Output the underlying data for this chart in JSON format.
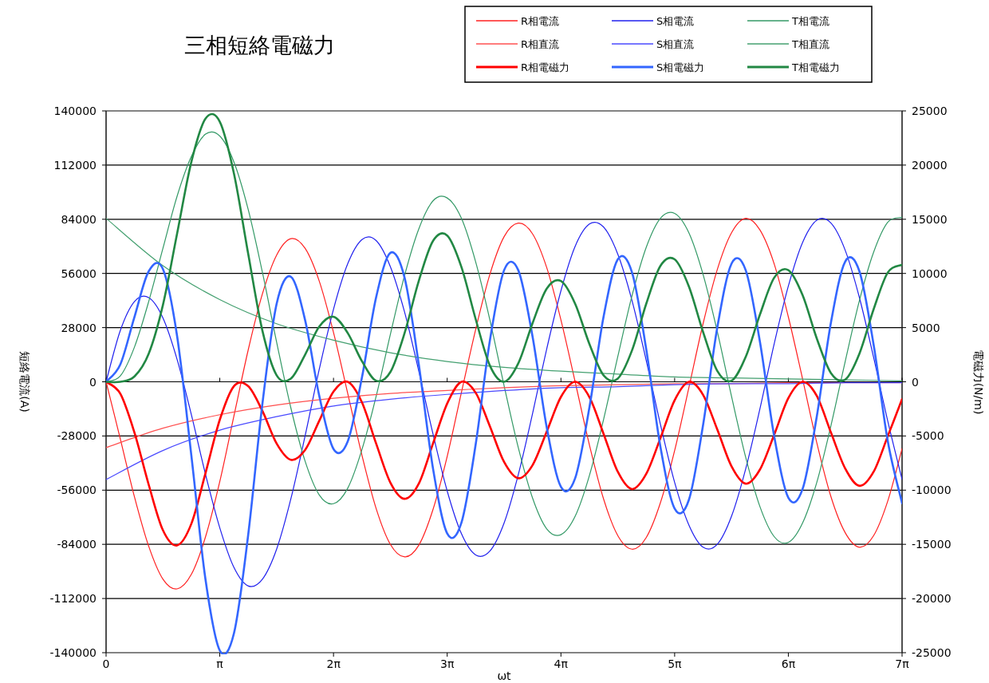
{
  "chart_data": {
    "type": "line",
    "title": "三相短絡電磁力",
    "xlabel": "ωt",
    "ylabel": "短絡電流(A)",
    "y2label": "電磁力(N/m)",
    "x": [
      0,
      0.393,
      0.785,
      1.178,
      1.571,
      1.963,
      2.356,
      2.749,
      3.142,
      3.534,
      3.927,
      4.32,
      4.712,
      5.105,
      5.498,
      5.89,
      6.283,
      6.676,
      7.069,
      7.461,
      7.854,
      8.247,
      8.639,
      9.032,
      9.425,
      9.817,
      10.21,
      10.603,
      10.996,
      11.388,
      11.781,
      12.174,
      12.566,
      12.959,
      13.352,
      13.744,
      14.137,
      14.53,
      14.923,
      15.315,
      15.708,
      16.101,
      16.493,
      16.886,
      17.279,
      17.671,
      18.064,
      18.457,
      18.85,
      19.242,
      19.635,
      20.028,
      20.42,
      20.813,
      21.206,
      21.598,
      21.991
    ],
    "xlim": [
      0,
      21.991
    ],
    "xticks": [
      0,
      {
        "value": 3.1416,
        "label": "π"
      },
      {
        "value": 6.2832,
        "label": "2π"
      },
      {
        "value": 9.4248,
        "label": "3π"
      },
      {
        "value": 12.5664,
        "label": "4π"
      },
      {
        "value": 15.708,
        "label": "5π"
      },
      {
        "value": 18.8496,
        "label": "6π"
      },
      {
        "value": 21.991,
        "label": "7π"
      }
    ],
    "ylim": [
      -140000,
      140000
    ],
    "yticks": [
      -140000,
      -112000,
      -84000,
      -56000,
      -28000,
      0,
      28000,
      56000,
      84000,
      112000,
      140000
    ],
    "y2lim": [
      -25000,
      25000
    ],
    "y2ticks": [
      -25000,
      -20000,
      -15000,
      -10000,
      -5000,
      0,
      5000,
      10000,
      15000,
      20000,
      25000
    ],
    "grid": "y",
    "legend": "top right",
    "series": [
      {
        "name": "R相電流",
        "color": "#ff2020",
        "values": [
          0,
          -29500,
          -59500,
          -85000,
          -102000,
          -107000,
          -99500,
          -80000,
          -51500,
          -17500,
          16500,
          45500,
          65500,
          74000,
          69000,
          52000,
          25500,
          -6000,
          -38000,
          -65500,
          -84000,
          -90500,
          -84500,
          -66000,
          -38500,
          -5500,
          27000,
          55500,
          75000,
          82000,
          76500,
          59000,
          32000,
          0,
          -32500,
          -60500,
          -79500,
          -86500,
          -80500,
          -62500,
          -35500,
          -3000,
          30000,
          58000,
          77000,
          84500,
          78500,
          61000,
          33500,
          1500,
          -31500,
          -59500,
          -78000,
          -85500,
          -79500,
          -61500,
          -34500
        ]
      },
      {
        "name": "S相電流",
        "color": "#2020ee",
        "values": [
          0,
          26500,
          41500,
          43500,
          33000,
          11500,
          -17000,
          -48000,
          -75500,
          -96000,
          -105500,
          -102000,
          -86500,
          -60500,
          -28000,
          6500,
          37500,
          61000,
          73500,
          73000,
          59500,
          36000,
          5500,
          -27000,
          -56500,
          -78500,
          -89500,
          -87500,
          -73000,
          -48000,
          -16500,
          17000,
          47000,
          70000,
          81500,
          80000,
          66000,
          42000,
          11000,
          -22000,
          -52000,
          -74000,
          -85500,
          -84000,
          -69500,
          -45000,
          -14000,
          19500,
          49500,
          72000,
          83500,
          82000,
          68000,
          43500,
          12500,
          -20500,
          -50500
        ]
      },
      {
        "name": "T相電流",
        "color": "#339966",
        "values": [
          0,
          3000,
          18000,
          41500,
          69000,
          96000,
          116500,
          128000,
          127000,
          113500,
          89000,
          56500,
          20500,
          -13500,
          -41000,
          -58500,
          -63000,
          -55000,
          -35000,
          -7500,
          24500,
          55000,
          79000,
          93500,
          95000,
          84500,
          62000,
          32000,
          -2000,
          -34000,
          -60000,
          -76000,
          -79000,
          -69500,
          -48500,
          -19500,
          13000,
          44500,
          69500,
          84500,
          87000,
          77000,
          55500,
          26000,
          -7500,
          -39000,
          -64500,
          -80000,
          -83000,
          -73000,
          -52000,
          -22500,
          10500,
          42000,
          67000,
          82500,
          85000
        ]
      },
      {
        "name": "R相直流",
        "color": "#ff5050",
        "x": [
          0,
          1.571,
          3.142,
          4.712,
          6.283,
          7.854,
          9.425,
          10.996,
          12.566,
          14.137,
          15.708,
          17.279,
          18.85,
          20.42,
          21.991
        ],
        "values": [
          -34000,
          -24000,
          -17000,
          -12000,
          -8500,
          -6000,
          -4500,
          -3000,
          -2000,
          -1500,
          -1000,
          -1000,
          -500,
          -500,
          -500
        ]
      },
      {
        "name": "S相直流",
        "color": "#4a4aff",
        "x": [
          0,
          1.571,
          3.142,
          4.712,
          6.283,
          7.854,
          9.425,
          10.996,
          12.566,
          14.137,
          15.708,
          17.279,
          18.85,
          20.42,
          21.991
        ],
        "values": [
          -50500,
          -35500,
          -25000,
          -18000,
          -12500,
          -9000,
          -6500,
          -4500,
          -3000,
          -2500,
          -1500,
          -1000,
          -1000,
          -500,
          -500
        ]
      },
      {
        "name": "T相直流",
        "color": "#44a070",
        "x": [
          0,
          1.571,
          3.142,
          4.712,
          6.283,
          7.854,
          9.425,
          10.996,
          12.566,
          14.137,
          15.708,
          17.279,
          18.85,
          20.42,
          21.991
        ],
        "values": [
          84500,
          60000,
          42500,
          30000,
          21500,
          15000,
          10500,
          7500,
          5500,
          4000,
          2500,
          2000,
          1500,
          1000,
          500
        ]
      },
      {
        "name": "R相電磁力",
        "color": "#ff0000",
        "axis": "y2",
        "values": [
          0,
          -1100,
          -4700,
          -9500,
          -13700,
          -15100,
          -13100,
          -8400,
          -3500,
          -400,
          -400,
          -2700,
          -5700,
          -7200,
          -6300,
          -3600,
          -900,
          0,
          -1900,
          -5700,
          -9300,
          -10800,
          -9400,
          -5700,
          -2000,
          0,
          -1000,
          -4100,
          -7400,
          -8900,
          -7700,
          -4600,
          -1400,
          0,
          -1400,
          -4800,
          -8300,
          -9900,
          -8500,
          -5200,
          -1700,
          0,
          -1200,
          -4400,
          -7800,
          -9400,
          -8100,
          -4900,
          -1500,
          0,
          -1300,
          -4700,
          -8000,
          -9600,
          -8300,
          -5000,
          -1600
        ]
      },
      {
        "name": "S相電磁力",
        "color": "#3366ff",
        "axis": "y2",
        "values": [
          0,
          1600,
          6000,
          10200,
          10400,
          4200,
          -6800,
          -18300,
          -24800,
          -23200,
          -14100,
          -2000,
          7200,
          9700,
          5700,
          -1300,
          -6200,
          -5500,
          400,
          7800,
          11900,
          9600,
          1600,
          -8000,
          -14000,
          -13000,
          -5800,
          3800,
          10300,
          10300,
          4200,
          -4200,
          -9700,
          -8900,
          -2400,
          6000,
          11300,
          10100,
          3000,
          -6000,
          -11700,
          -10900,
          -4000,
          5000,
          10900,
          10300,
          3700,
          -5000,
          -10700,
          -9900,
          -3200,
          5500,
          11100,
          10200,
          3400,
          -5500,
          -11200
        ]
      },
      {
        "name": "T相電磁力",
        "color": "#228844",
        "axis": "y2",
        "values": [
          0,
          0,
          500,
          2600,
          7100,
          13700,
          20300,
          24300,
          24000,
          19200,
          11800,
          4700,
          600,
          300,
          2500,
          5100,
          6000,
          4500,
          1900,
          100,
          900,
          4500,
          9300,
          13000,
          13500,
          10600,
          5800,
          1500,
          0,
          1700,
          5400,
          8600,
          9300,
          7200,
          3500,
          600,
          300,
          2900,
          7200,
          10700,
          11300,
          8800,
          4600,
          1000,
          100,
          2300,
          6200,
          9600,
          10300,
          8000,
          4000,
          800,
          200,
          2600,
          6700,
          10100,
          10800
        ]
      }
    ]
  }
}
